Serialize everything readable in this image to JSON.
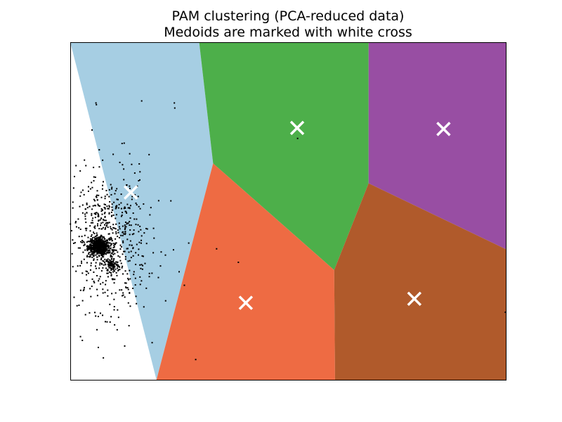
{
  "chart_data": {
    "type": "scatter",
    "title": [
      "PAM clustering (PCA-reduced data)",
      "Medoids are marked with white cross"
    ],
    "xlabel": "",
    "ylabel": "",
    "show_ticks": false,
    "grid": false,
    "xlim": [
      0,
      1
    ],
    "ylim": [
      0,
      1
    ],
    "regions": [
      {
        "name": "cluster-0",
        "color": "#a6cee3",
        "polygon": [
          [
            0,
            1
          ],
          [
            0.296,
            1
          ],
          [
            0.328,
            0.641
          ],
          [
            0.198,
            0
          ]
        ]
      },
      {
        "name": "cluster-1",
        "color": "#4daf4a",
        "polygon": [
          [
            0.296,
            1
          ],
          [
            0.685,
            1
          ],
          [
            0.685,
            0.582
          ],
          [
            0.606,
            0.325
          ],
          [
            0.328,
            0.641
          ]
        ]
      },
      {
        "name": "cluster-2",
        "color": "#984ea3",
        "polygon": [
          [
            0.685,
            1
          ],
          [
            1,
            1
          ],
          [
            1,
            0.387
          ],
          [
            0.685,
            0.582
          ]
        ]
      },
      {
        "name": "cluster-3",
        "color": "#ee6b43",
        "polygon": [
          [
            0.328,
            0.641
          ],
          [
            0.606,
            0.325
          ],
          [
            0.608,
            0
          ],
          [
            0.198,
            0
          ]
        ]
      },
      {
        "name": "cluster-4",
        "color": "#b05a2b",
        "polygon": [
          [
            0.606,
            0.325
          ],
          [
            0.685,
            0.582
          ],
          [
            1,
            0.387
          ],
          [
            1,
            0
          ],
          [
            0.608,
            0
          ]
        ]
      }
    ],
    "region_opacity_note": "",
    "medoids": [
      {
        "x": 0.139,
        "y": 0.555
      },
      {
        "x": 0.521,
        "y": 0.746
      },
      {
        "x": 0.857,
        "y": 0.743
      },
      {
        "x": 0.403,
        "y": 0.228
      },
      {
        "x": 0.79,
        "y": 0.24
      }
    ],
    "points": {
      "color": "#000000",
      "dense_cluster": {
        "cx": 0.066,
        "cy": 0.395,
        "sx": 0.012,
        "sy": 0.012,
        "n": 600
      },
      "secondary_cluster": {
        "cx": 0.096,
        "cy": 0.34,
        "sx": 0.008,
        "sy": 0.01,
        "n": 90
      },
      "halo": {
        "cx": 0.085,
        "cy": 0.41,
        "sx": 0.045,
        "sy": 0.1,
        "n": 650
      },
      "outliers": [
        [
          0.059,
          0.82
        ],
        [
          0.06,
          0.815
        ],
        [
          0.164,
          0.826
        ],
        [
          0.239,
          0.82
        ],
        [
          0.24,
          0.805
        ],
        [
          0.05,
          0.74
        ],
        [
          0.119,
          0.7
        ],
        [
          0.181,
          0.667
        ],
        [
          0.12,
          0.637
        ],
        [
          0.141,
          0.638
        ],
        [
          0.231,
          0.53
        ],
        [
          0.272,
          0.405
        ],
        [
          0.237,
          0.385
        ],
        [
          0.336,
          0.388
        ],
        [
          0.386,
          0.348
        ],
        [
          0.25,
          0.32
        ],
        [
          0.262,
          0.28
        ],
        [
          0.219,
          0.234
        ],
        [
          0.169,
          0.216
        ],
        [
          0.111,
          0.185
        ],
        [
          0.188,
          0.11
        ],
        [
          0.125,
          0.1
        ],
        [
          0.076,
          0.065
        ],
        [
          0.288,
          0.06
        ],
        [
          0.006,
          0.335
        ],
        [
          0.999,
          0.2
        ],
        [
          0.522,
          0.715
        ]
      ]
    }
  }
}
